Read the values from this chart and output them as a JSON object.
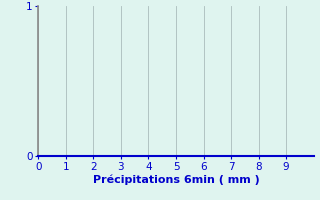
{
  "title": "",
  "xlabel": "Précipitations 6min ( mm )",
  "ylabel": "",
  "xlim": [
    0,
    10
  ],
  "ylim": [
    0,
    1
  ],
  "xticks": [
    0,
    1,
    2,
    3,
    4,
    5,
    6,
    7,
    8,
    9
  ],
  "yticks": [
    0,
    1
  ],
  "background_color": "#dff4ef",
  "left_spine_color": "#888888",
  "bottom_spine_color": "#0000cc",
  "grid_color": "#aabbbb",
  "label_color": "#0000cc",
  "xlabel_fontsize": 8,
  "tick_fontsize": 7.5
}
